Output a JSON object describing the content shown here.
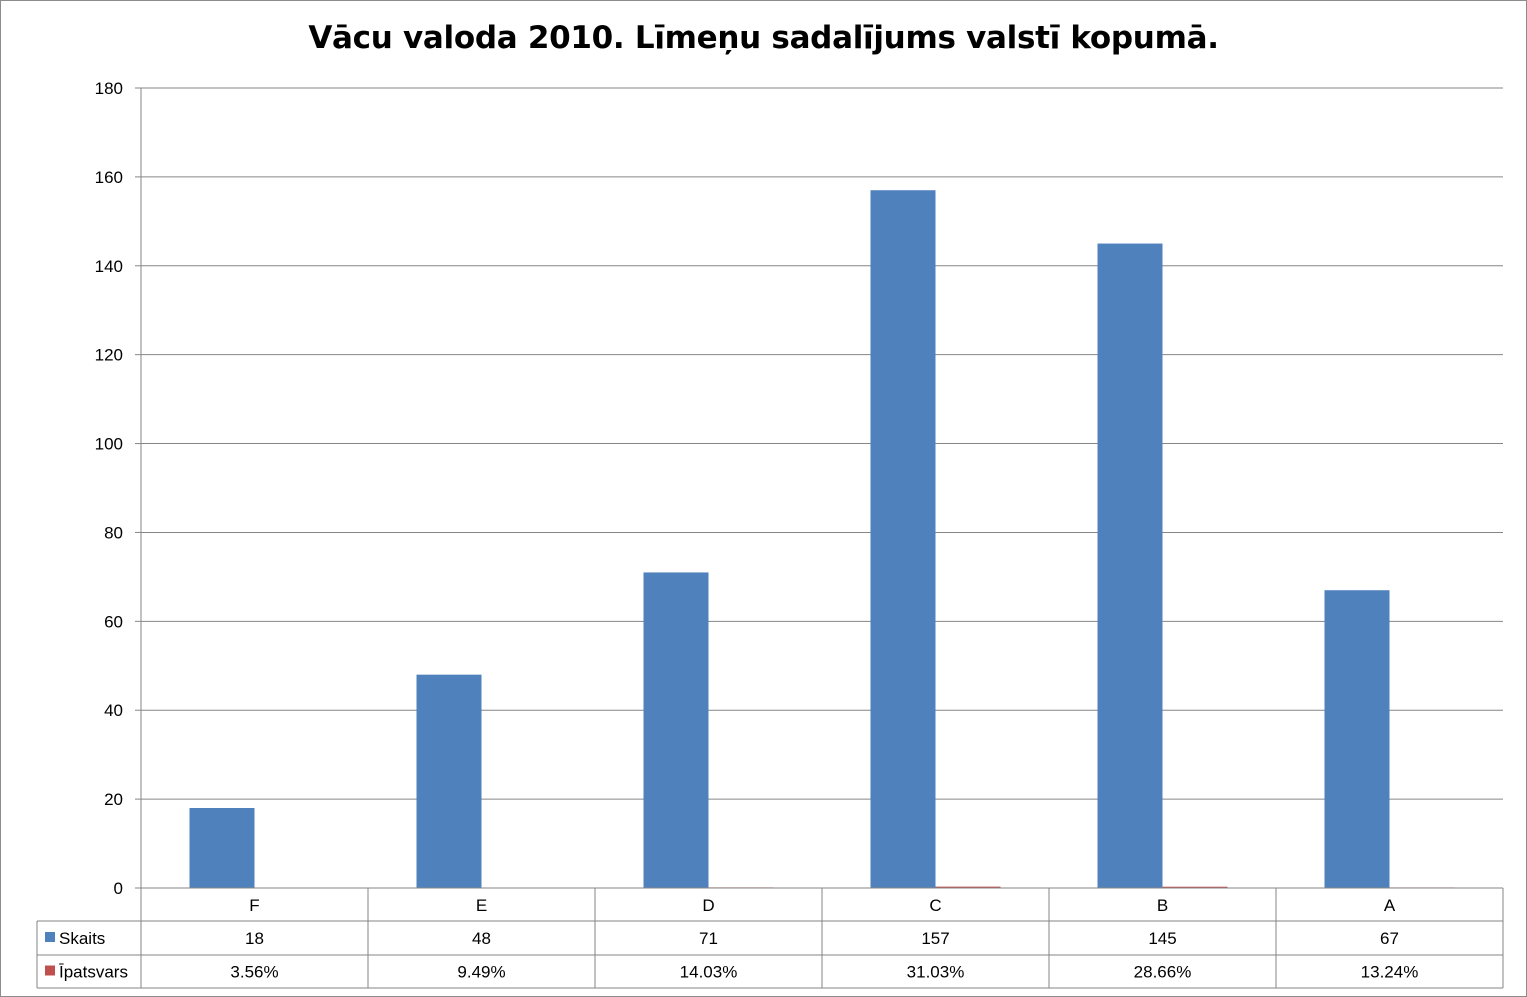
{
  "chart_data": {
    "type": "bar",
    "title": "Vācu valoda 2010. Līmeņu sadalījums valstī kopumā.",
    "categories": [
      "F",
      "E",
      "D",
      "C",
      "B",
      "A"
    ],
    "series": [
      {
        "name": "Skaits",
        "values": [
          18,
          48,
          71,
          157,
          145,
          67
        ],
        "labels": [
          "18",
          "48",
          "71",
          "157",
          "145",
          "67"
        ],
        "color": "#4f81bd"
      },
      {
        "name": "Īpatsvars",
        "values": [
          0.0356,
          0.0949,
          0.1403,
          0.3103,
          0.2866,
          0.1324
        ],
        "labels": [
          "3.56%",
          "9.49%",
          "14.03%",
          "31.03%",
          "28.66%",
          "13.24%"
        ],
        "color": "#c0504d"
      }
    ],
    "ylim": [
      0,
      180
    ],
    "yticks": [
      "0",
      "20",
      "40",
      "60",
      "80",
      "100",
      "120",
      "140",
      "160",
      "180"
    ],
    "grid": true,
    "legend": "data-table"
  }
}
